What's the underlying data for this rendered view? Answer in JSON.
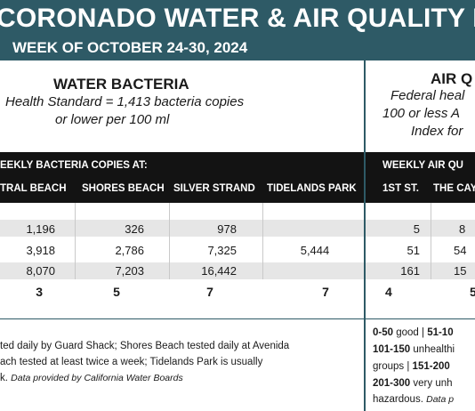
{
  "header": {
    "title": "CORONADO WATER & AIR QUALITY R",
    "week": "WEEK OF OCTOBER 24-30, 2024"
  },
  "water": {
    "title": "WATER BACTERIA",
    "standard_line1": "Health Standard  = 1,413 bacteria copies",
    "standard_line2": "or lower per 100 ml",
    "bar_label": "EEKLY BACTERIA COPIES AT:",
    "columns": [
      "TRAL BEACH",
      "SHORES BEACH",
      "SILVER STRAND",
      "TIDELANDS PARK"
    ],
    "rows": [
      [
        "1,196",
        "326",
        "978",
        ""
      ],
      [
        "3,918",
        "2,786",
        "7,325",
        "5,444"
      ],
      [
        "8,070",
        "7,203",
        "16,442",
        ""
      ]
    ],
    "totals": [
      "3",
      "5",
      "7",
      "7"
    ],
    "note_line1": "ted daily by Guard Shack; Shores Beach tested daily at Avenida",
    "note_line2": "ach tested at least twice a week; Tidelands Park is usually",
    "note_line3_plain": "k. ",
    "note_line3_italic": "Data provided by California Water Boards"
  },
  "air": {
    "title": "AIR Q",
    "standard_line1": "Federal heal",
    "standard_line2": "100 or less A",
    "standard_line3": "Index for",
    "bar_label": "WEEKLY AIR QU",
    "columns": [
      "1ST ST.",
      "THE CAY"
    ],
    "rows": [
      [
        "5",
        "8"
      ],
      [
        "51",
        "54"
      ],
      [
        "161",
        "15"
      ]
    ],
    "totals": [
      "4",
      "5"
    ],
    "legend_line1_a": "0-50",
    "legend_line1_b": " good | ",
    "legend_line1_c": "51-10",
    "legend_line2_a": "101-150",
    "legend_line2_b": " unhealthi",
    "legend_line3_a": "groups | ",
    "legend_line3_b": "151-200",
    "legend_line4_a": "201-300",
    "legend_line4_b": " very unh",
    "legend_line5_a": "hazardous. ",
    "legend_line5_b": "Data p"
  },
  "colors": {
    "header_bg": "#2e5a66",
    "bar_bg": "#131313",
    "row_shade": "#e6e6e6"
  }
}
